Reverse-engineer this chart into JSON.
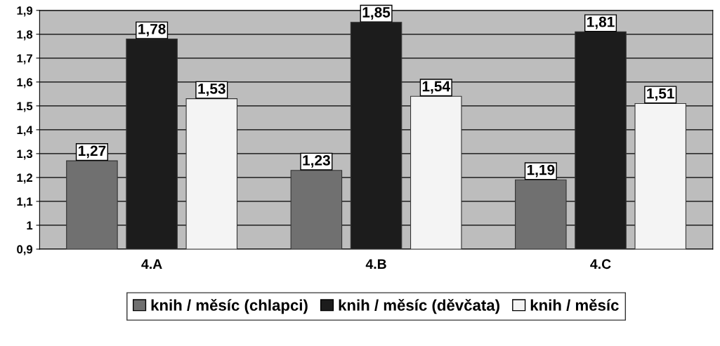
{
  "chart_data": {
    "type": "bar",
    "categories": [
      "4.A",
      "4.B",
      "4.C"
    ],
    "series": [
      {
        "name": "knih / měsíc (chlapci)",
        "color": "#707070",
        "values": [
          1.27,
          1.23,
          1.19
        ],
        "value_labels": [
          "1,27",
          "1,23",
          "1,19"
        ]
      },
      {
        "name": "knih / měsíc (děvčata)",
        "color": "#1c1c1c",
        "values": [
          1.78,
          1.85,
          1.81
        ],
        "value_labels": [
          "1,78",
          "1,85",
          "1,81"
        ]
      },
      {
        "name": "knih / měsíc",
        "color": "#f4f4f4",
        "values": [
          1.53,
          1.54,
          1.51
        ],
        "value_labels": [
          "1,53",
          "1,54",
          "1,51"
        ]
      }
    ],
    "ylim": [
      0.9,
      1.9
    ],
    "yticks": [
      {
        "value": 0.9,
        "label": "0,9"
      },
      1,
      {
        "value": 1.1,
        "label": "1,1"
      },
      {
        "value": 1.2,
        "label": "1,2"
      },
      {
        "value": 1.3,
        "label": "1,3"
      },
      {
        "value": 1.4,
        "label": "1,4"
      },
      {
        "value": 1.5,
        "label": "1,5"
      },
      {
        "value": 1.6,
        "label": "1,6"
      },
      {
        "value": 1.7,
        "label": "1,7"
      },
      {
        "value": 1.8,
        "label": "1,8"
      },
      {
        "value": 1.9,
        "label": "1,9"
      }
    ],
    "grid": "y",
    "legend": "bottom"
  }
}
